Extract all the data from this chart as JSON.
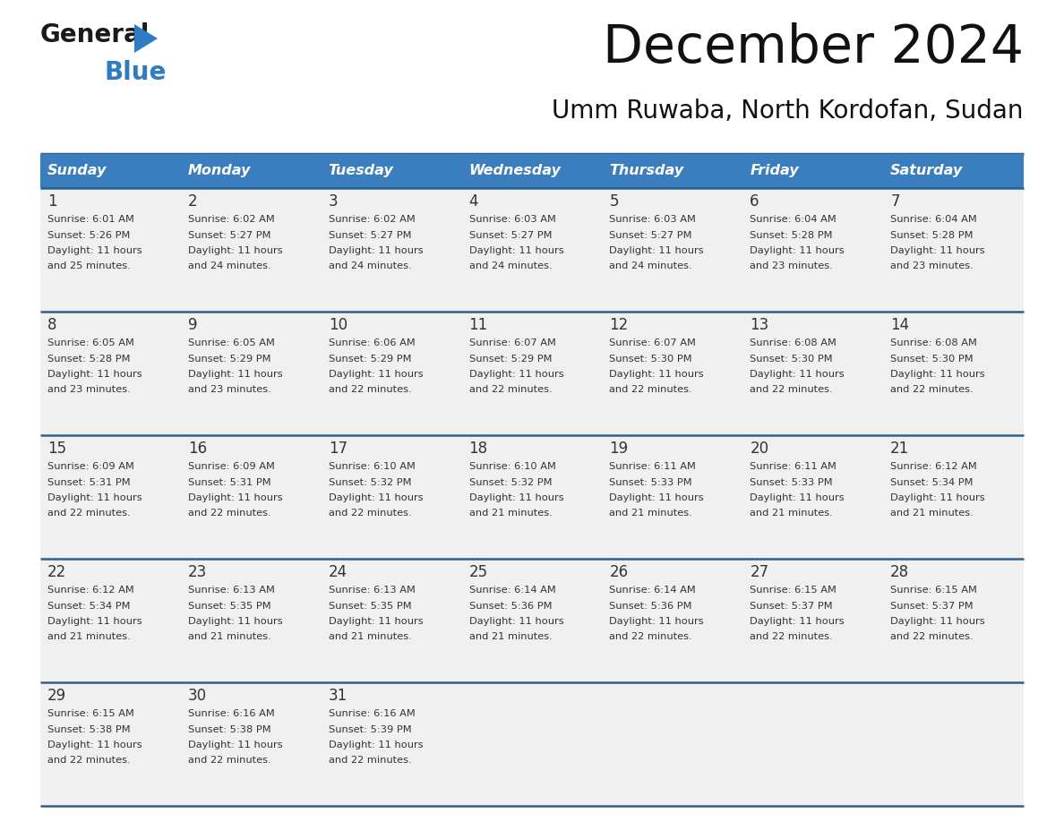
{
  "title": "December 2024",
  "subtitle": "Umm Ruwaba, North Kordofan, Sudan",
  "days_of_week": [
    "Sunday",
    "Monday",
    "Tuesday",
    "Wednesday",
    "Thursday",
    "Friday",
    "Saturday"
  ],
  "header_bg": "#3a7ebf",
  "header_text": "#ffffff",
  "row_bg": "#f0f0f0",
  "cell_text_color": "#333333",
  "day_num_color": "#333333",
  "border_color": "#2e5f8a",
  "logo_black": "#1a1a1a",
  "logo_blue": "#2e7cc4",
  "calendar_data": [
    {
      "day": 1,
      "dow": 0,
      "sunrise": "6:01 AM",
      "sunset": "5:26 PM",
      "daylight": "11 hours and 25 minutes"
    },
    {
      "day": 2,
      "dow": 1,
      "sunrise": "6:02 AM",
      "sunset": "5:27 PM",
      "daylight": "11 hours and 24 minutes"
    },
    {
      "day": 3,
      "dow": 2,
      "sunrise": "6:02 AM",
      "sunset": "5:27 PM",
      "daylight": "11 hours and 24 minutes"
    },
    {
      "day": 4,
      "dow": 3,
      "sunrise": "6:03 AM",
      "sunset": "5:27 PM",
      "daylight": "11 hours and 24 minutes"
    },
    {
      "day": 5,
      "dow": 4,
      "sunrise": "6:03 AM",
      "sunset": "5:27 PM",
      "daylight": "11 hours and 24 minutes"
    },
    {
      "day": 6,
      "dow": 5,
      "sunrise": "6:04 AM",
      "sunset": "5:28 PM",
      "daylight": "11 hours and 23 minutes"
    },
    {
      "day": 7,
      "dow": 6,
      "sunrise": "6:04 AM",
      "sunset": "5:28 PM",
      "daylight": "11 hours and 23 minutes"
    },
    {
      "day": 8,
      "dow": 0,
      "sunrise": "6:05 AM",
      "sunset": "5:28 PM",
      "daylight": "11 hours and 23 minutes"
    },
    {
      "day": 9,
      "dow": 1,
      "sunrise": "6:05 AM",
      "sunset": "5:29 PM",
      "daylight": "11 hours and 23 minutes"
    },
    {
      "day": 10,
      "dow": 2,
      "sunrise": "6:06 AM",
      "sunset": "5:29 PM",
      "daylight": "11 hours and 22 minutes"
    },
    {
      "day": 11,
      "dow": 3,
      "sunrise": "6:07 AM",
      "sunset": "5:29 PM",
      "daylight": "11 hours and 22 minutes"
    },
    {
      "day": 12,
      "dow": 4,
      "sunrise": "6:07 AM",
      "sunset": "5:30 PM",
      "daylight": "11 hours and 22 minutes"
    },
    {
      "day": 13,
      "dow": 5,
      "sunrise": "6:08 AM",
      "sunset": "5:30 PM",
      "daylight": "11 hours and 22 minutes"
    },
    {
      "day": 14,
      "dow": 6,
      "sunrise": "6:08 AM",
      "sunset": "5:30 PM",
      "daylight": "11 hours and 22 minutes"
    },
    {
      "day": 15,
      "dow": 0,
      "sunrise": "6:09 AM",
      "sunset": "5:31 PM",
      "daylight": "11 hours and 22 minutes"
    },
    {
      "day": 16,
      "dow": 1,
      "sunrise": "6:09 AM",
      "sunset": "5:31 PM",
      "daylight": "11 hours and 22 minutes"
    },
    {
      "day": 17,
      "dow": 2,
      "sunrise": "6:10 AM",
      "sunset": "5:32 PM",
      "daylight": "11 hours and 22 minutes"
    },
    {
      "day": 18,
      "dow": 3,
      "sunrise": "6:10 AM",
      "sunset": "5:32 PM",
      "daylight": "11 hours and 21 minutes"
    },
    {
      "day": 19,
      "dow": 4,
      "sunrise": "6:11 AM",
      "sunset": "5:33 PM",
      "daylight": "11 hours and 21 minutes"
    },
    {
      "day": 20,
      "dow": 5,
      "sunrise": "6:11 AM",
      "sunset": "5:33 PM",
      "daylight": "11 hours and 21 minutes"
    },
    {
      "day": 21,
      "dow": 6,
      "sunrise": "6:12 AM",
      "sunset": "5:34 PM",
      "daylight": "11 hours and 21 minutes"
    },
    {
      "day": 22,
      "dow": 0,
      "sunrise": "6:12 AM",
      "sunset": "5:34 PM",
      "daylight": "11 hours and 21 minutes"
    },
    {
      "day": 23,
      "dow": 1,
      "sunrise": "6:13 AM",
      "sunset": "5:35 PM",
      "daylight": "11 hours and 21 minutes"
    },
    {
      "day": 24,
      "dow": 2,
      "sunrise": "6:13 AM",
      "sunset": "5:35 PM",
      "daylight": "11 hours and 21 minutes"
    },
    {
      "day": 25,
      "dow": 3,
      "sunrise": "6:14 AM",
      "sunset": "5:36 PM",
      "daylight": "11 hours and 21 minutes"
    },
    {
      "day": 26,
      "dow": 4,
      "sunrise": "6:14 AM",
      "sunset": "5:36 PM",
      "daylight": "11 hours and 22 minutes"
    },
    {
      "day": 27,
      "dow": 5,
      "sunrise": "6:15 AM",
      "sunset": "5:37 PM",
      "daylight": "11 hours and 22 minutes"
    },
    {
      "day": 28,
      "dow": 6,
      "sunrise": "6:15 AM",
      "sunset": "5:37 PM",
      "daylight": "11 hours and 22 minutes"
    },
    {
      "day": 29,
      "dow": 0,
      "sunrise": "6:15 AM",
      "sunset": "5:38 PM",
      "daylight": "11 hours and 22 minutes"
    },
    {
      "day": 30,
      "dow": 1,
      "sunrise": "6:16 AM",
      "sunset": "5:38 PM",
      "daylight": "11 hours and 22 minutes"
    },
    {
      "day": 31,
      "dow": 2,
      "sunrise": "6:16 AM",
      "sunset": "5:39 PM",
      "daylight": "11 hours and 22 minutes"
    }
  ]
}
